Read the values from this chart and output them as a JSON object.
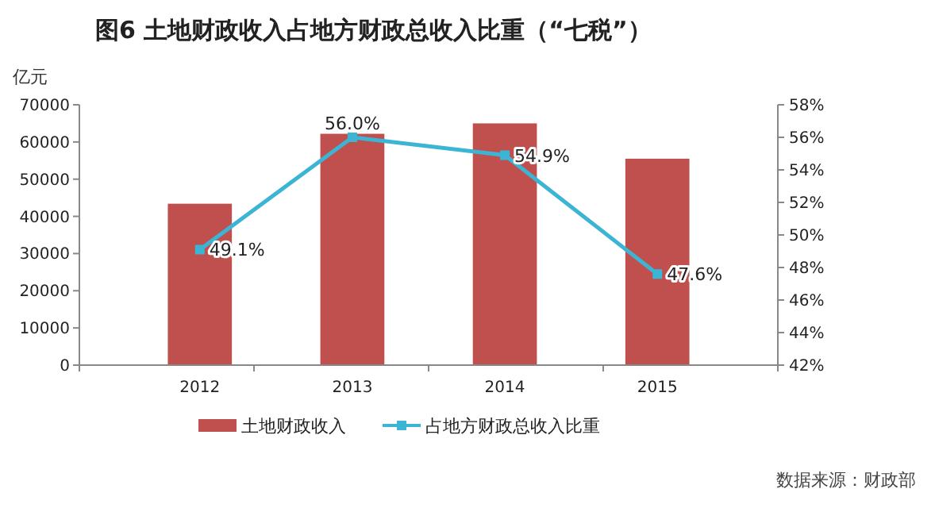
{
  "chart_data": {
    "type": "bar",
    "title": "图6  土地财政收入占地方财政总收入比重（“七税”）",
    "ylabel": "亿元",
    "categories": [
      "2012",
      "2013",
      "2014",
      "2015"
    ],
    "series": [
      {
        "name": "土地财政收入",
        "type": "bar",
        "color": "#c0504d",
        "values": [
          43400,
          62200,
          65000,
          55500
        ]
      },
      {
        "name": "占地方财政总收入比重",
        "type": "line",
        "axis": "y2",
        "color": "#3cb4d4",
        "marker": "square",
        "values": [
          49.1,
          56.0,
          54.9,
          47.6
        ],
        "value_labels": [
          "49.1%",
          "56.0%",
          "54.9%",
          "47.6%"
        ]
      }
    ],
    "ylim": [
      0,
      70000
    ],
    "yticks": [
      0,
      10000,
      20000,
      30000,
      40000,
      50000,
      60000,
      70000
    ],
    "y2lim": [
      42,
      58
    ],
    "y2ticks": [
      {
        "value": 42,
        "label": "42%"
      },
      {
        "value": 44,
        "label": "44%"
      },
      {
        "value": 46,
        "label": "46%"
      },
      {
        "value": 48,
        "label": "48%"
      },
      {
        "value": 50,
        "label": "50%"
      },
      {
        "value": 52,
        "label": "52%"
      },
      {
        "value": 54,
        "label": "54%"
      },
      {
        "value": 56,
        "label": "56%"
      },
      {
        "value": 58,
        "label": "58%"
      }
    ],
    "legend": "bottom",
    "grid": false,
    "annotations": [
      "数据来源：财政部"
    ]
  }
}
